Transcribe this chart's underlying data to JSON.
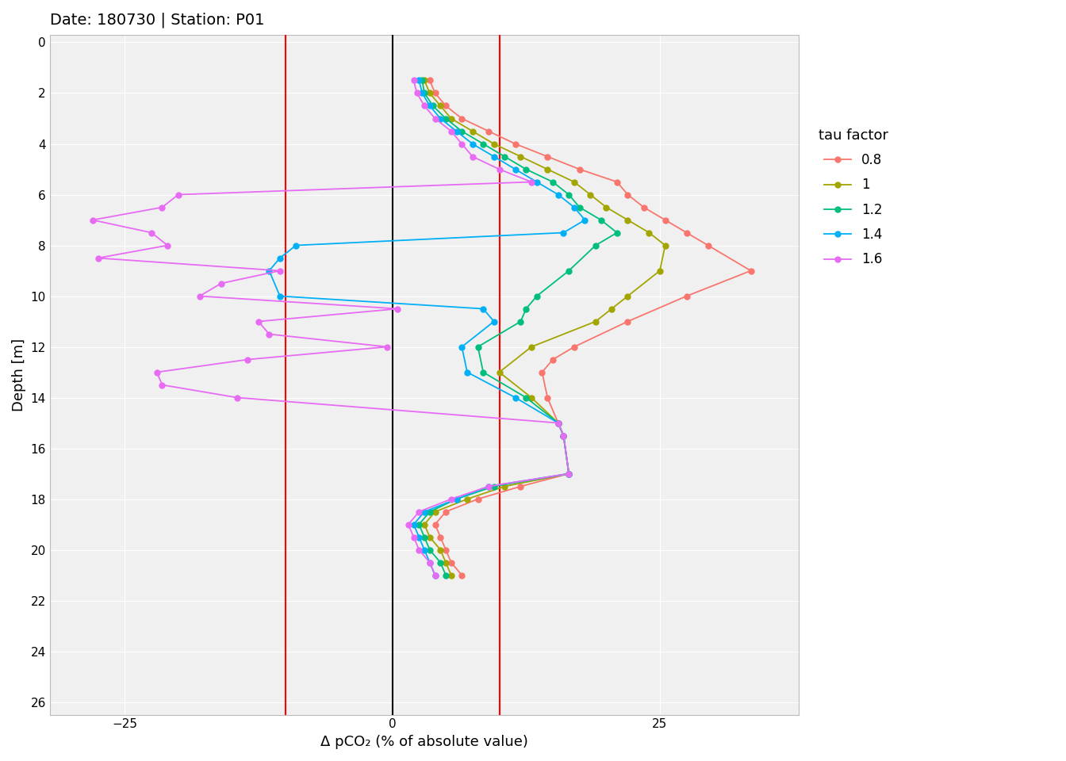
{
  "title": "Date: 180730 | Station: P01",
  "xlabel": "Δ pCO₂ (% of absolute value)",
  "ylabel": "Depth [m]",
  "xlim": [
    -32,
    38
  ],
  "ylim": [
    26.5,
    -0.3
  ],
  "xticks": [
    -25,
    0,
    25
  ],
  "yticks": [
    0,
    2,
    4,
    6,
    8,
    10,
    12,
    14,
    16,
    18,
    20,
    22,
    24,
    26
  ],
  "vlines_red": [
    -10,
    10
  ],
  "vline_black": 0,
  "background_color": "#f0f0f0",
  "grid_color": "#ffffff",
  "legend_title": "tau factor",
  "series": {
    "0.8": {
      "color": "#F8766D",
      "depth": [
        1.5,
        2.0,
        2.5,
        3.0,
        3.5,
        4.0,
        4.5,
        5.0,
        5.5,
        6.0,
        6.5,
        7.0,
        7.5,
        8.0,
        9.0,
        10.0,
        11.0,
        12.0,
        12.5,
        13.0,
        14.0,
        15.0,
        15.5,
        17.0,
        17.5,
        18.0,
        18.5,
        19.0,
        19.5,
        20.0,
        20.5,
        21.0
      ],
      "x": [
        3.5,
        4.0,
        5.0,
        6.5,
        9.0,
        11.5,
        14.5,
        17.5,
        21.0,
        22.0,
        23.5,
        25.5,
        27.5,
        29.5,
        33.5,
        27.5,
        22.0,
        17.0,
        15.0,
        14.0,
        14.5,
        15.5,
        16.0,
        16.5,
        12.0,
        8.0,
        5.0,
        4.0,
        4.5,
        5.0,
        5.5,
        6.5
      ]
    },
    "1": {
      "color": "#A3A500",
      "depth": [
        1.5,
        2.0,
        2.5,
        3.0,
        3.5,
        4.0,
        4.5,
        5.0,
        5.5,
        6.0,
        6.5,
        7.0,
        7.5,
        8.0,
        9.0,
        10.0,
        10.5,
        11.0,
        12.0,
        13.0,
        14.0,
        15.0,
        15.5,
        17.0,
        17.5,
        18.0,
        18.5,
        19.0,
        19.5,
        20.0,
        20.5,
        21.0
      ],
      "x": [
        3.0,
        3.5,
        4.5,
        5.5,
        7.5,
        9.5,
        12.0,
        14.5,
        17.0,
        18.5,
        20.0,
        22.0,
        24.0,
        25.5,
        25.0,
        22.0,
        20.5,
        19.0,
        13.0,
        10.0,
        13.0,
        15.5,
        16.0,
        16.5,
        10.5,
        7.0,
        4.0,
        3.0,
        3.5,
        4.5,
        5.0,
        5.5
      ]
    },
    "1.2": {
      "color": "#00BF7D",
      "depth": [
        1.5,
        2.0,
        2.5,
        3.0,
        3.5,
        4.0,
        4.5,
        5.0,
        5.5,
        6.0,
        6.5,
        7.0,
        7.5,
        8.0,
        9.0,
        10.0,
        10.5,
        11.0,
        12.0,
        13.0,
        14.0,
        15.0,
        15.5,
        17.0,
        17.5,
        18.0,
        18.5,
        19.0,
        19.5,
        20.0,
        20.5,
        21.0
      ],
      "x": [
        2.8,
        3.0,
        3.8,
        5.0,
        6.5,
        8.5,
        10.5,
        12.5,
        15.0,
        16.5,
        17.5,
        19.5,
        21.0,
        19.0,
        16.5,
        13.5,
        12.5,
        12.0,
        8.0,
        8.5,
        12.5,
        15.5,
        16.0,
        16.5,
        9.5,
        6.0,
        3.5,
        2.5,
        3.0,
        3.5,
        4.5,
        5.0
      ]
    },
    "1.4": {
      "color": "#00B0F6",
      "depth": [
        1.5,
        2.0,
        2.5,
        3.0,
        3.5,
        4.0,
        4.5,
        5.0,
        5.5,
        6.0,
        6.5,
        7.0,
        7.5,
        8.0,
        8.5,
        9.0,
        10.0,
        10.5,
        11.0,
        12.0,
        13.0,
        14.0,
        15.0,
        15.5,
        17.0,
        17.5,
        18.0,
        18.5,
        19.0,
        19.5,
        20.0,
        20.5,
        21.0
      ],
      "x": [
        2.5,
        2.8,
        3.5,
        4.5,
        6.0,
        7.5,
        9.5,
        11.5,
        13.5,
        15.5,
        17.0,
        18.0,
        16.0,
        -9.0,
        -10.5,
        -11.5,
        -10.5,
        8.5,
        9.5,
        6.5,
        7.0,
        11.5,
        15.5,
        16.0,
        16.5,
        9.0,
        6.0,
        3.0,
        2.0,
        2.5,
        3.0,
        3.5,
        4.0
      ]
    },
    "1.6": {
      "color": "#E76BF3",
      "depth": [
        1.5,
        2.0,
        2.5,
        3.0,
        3.5,
        4.0,
        4.5,
        5.0,
        5.5,
        6.0,
        6.5,
        7.0,
        7.5,
        8.0,
        8.5,
        9.0,
        9.5,
        10.0,
        10.5,
        11.0,
        11.5,
        12.0,
        12.5,
        13.0,
        13.5,
        14.0,
        15.0,
        15.5,
        17.0,
        17.5,
        18.0,
        18.5,
        19.0,
        19.5,
        20.0,
        20.5,
        21.0
      ],
      "x": [
        2.0,
        2.3,
        3.0,
        4.0,
        5.5,
        6.5,
        7.5,
        10.0,
        13.0,
        -20.0,
        -21.5,
        -28.0,
        -22.5,
        -21.0,
        -27.5,
        -10.5,
        -16.0,
        -18.0,
        0.5,
        -12.5,
        -11.5,
        -0.5,
        -13.5,
        -22.0,
        -21.5,
        -14.5,
        15.5,
        16.0,
        16.5,
        9.0,
        5.5,
        2.5,
        1.5,
        2.0,
        2.5,
        3.5,
        4.0
      ]
    }
  }
}
